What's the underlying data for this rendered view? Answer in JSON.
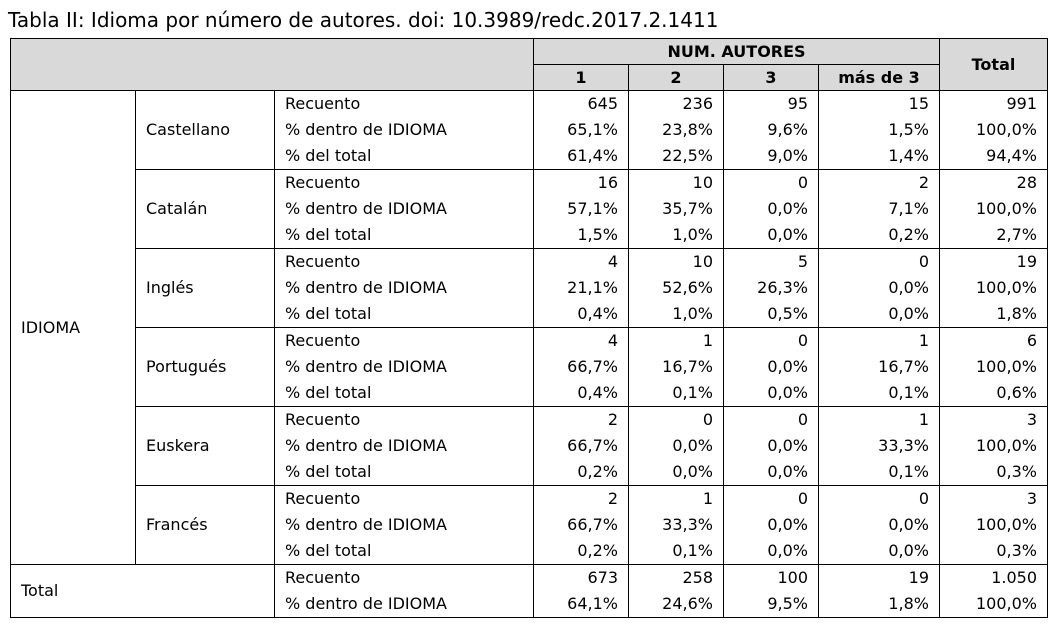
{
  "caption": "Tabla II: Idioma por número de autores. doi: 10.3989/redc.2017.2.1411",
  "header": {
    "group_label": "NUM. AUTORES",
    "columns": [
      "1",
      "2",
      "3",
      "más de 3"
    ],
    "total_label": "Total"
  },
  "row_group_label": "IDIOMA",
  "stat_labels": {
    "count": "Recuento",
    "pct_row": "% dentro de IDIOMA",
    "pct_total": "% del total"
  },
  "languages": [
    {
      "name": "Castellano",
      "count": [
        "645",
        "236",
        "95",
        "15",
        "991"
      ],
      "pct_row": [
        "65,1%",
        "23,8%",
        "9,6%",
        "1,5%",
        "100,0%"
      ],
      "pct_total": [
        "61,4%",
        "22,5%",
        "9,0%",
        "1,4%",
        "94,4%"
      ]
    },
    {
      "name": "Catalán",
      "count": [
        "16",
        "10",
        "0",
        "2",
        "28"
      ],
      "pct_row": [
        "57,1%",
        "35,7%",
        "0,0%",
        "7,1%",
        "100,0%"
      ],
      "pct_total": [
        "1,5%",
        "1,0%",
        "0,0%",
        "0,2%",
        "2,7%"
      ]
    },
    {
      "name": "Inglés",
      "count": [
        "4",
        "10",
        "5",
        "0",
        "19"
      ],
      "pct_row": [
        "21,1%",
        "52,6%",
        "26,3%",
        "0,0%",
        "100,0%"
      ],
      "pct_total": [
        "0,4%",
        "1,0%",
        "0,5%",
        "0,0%",
        "1,8%"
      ]
    },
    {
      "name": "Portugués",
      "count": [
        "4",
        "1",
        "0",
        "1",
        "6"
      ],
      "pct_row": [
        "66,7%",
        "16,7%",
        "0,0%",
        "16,7%",
        "100,0%"
      ],
      "pct_total": [
        "0,4%",
        "0,1%",
        "0,0%",
        "0,1%",
        "0,6%"
      ]
    },
    {
      "name": "Euskera",
      "count": [
        "2",
        "0",
        "0",
        "1",
        "3"
      ],
      "pct_row": [
        "66,7%",
        "0,0%",
        "0,0%",
        "33,3%",
        "100,0%"
      ],
      "pct_total": [
        "0,2%",
        "0,0%",
        "0,0%",
        "0,1%",
        "0,3%"
      ]
    },
    {
      "name": "Francés",
      "count": [
        "2",
        "1",
        "0",
        "0",
        "3"
      ],
      "pct_row": [
        "66,7%",
        "33,3%",
        "0,0%",
        "0,0%",
        "100,0%"
      ],
      "pct_total": [
        "0,2%",
        "0,1%",
        "0,0%",
        "0,0%",
        "0,3%"
      ]
    }
  ],
  "total_row": {
    "label": "Total",
    "count": [
      "673",
      "258",
      "100",
      "19",
      "1.050"
    ],
    "pct_row": [
      "64,1%",
      "24,6%",
      "9,5%",
      "1,8%",
      "100,0%"
    ]
  }
}
